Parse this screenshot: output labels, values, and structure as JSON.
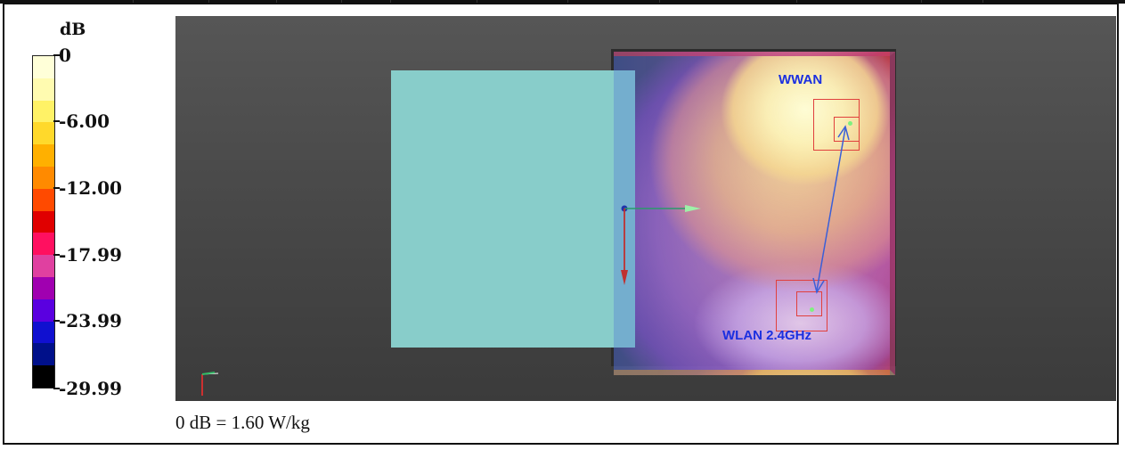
{
  "legend": {
    "unit": "dB",
    "labels": [
      "0",
      "-6.00",
      "-12.00",
      "-17.99",
      "-23.99",
      "-29.99"
    ],
    "colors": [
      "#ffffd8",
      "#fffbb0",
      "#fff266",
      "#ffd92b",
      "#ffb000",
      "#ff8a00",
      "#ff4a00",
      "#e00000",
      "#ff1060",
      "#e040a0",
      "#a000b0",
      "#5a00e0",
      "#1010d0",
      "#00108a",
      "#000000"
    ]
  },
  "viewport": {
    "antennas": [
      {
        "label": "WWAN",
        "icon": "probe-square-icon"
      },
      {
        "label": "WLAN 2.4GHz",
        "icon": "probe-square-icon"
      }
    ],
    "axis_icon": "axis-triad-icon",
    "corner_axis_icon": "corner-axis-icon",
    "link_icon": "double-arrow-icon"
  },
  "footer": {
    "scale_text": "0 dB = 1.60 W/kg"
  }
}
